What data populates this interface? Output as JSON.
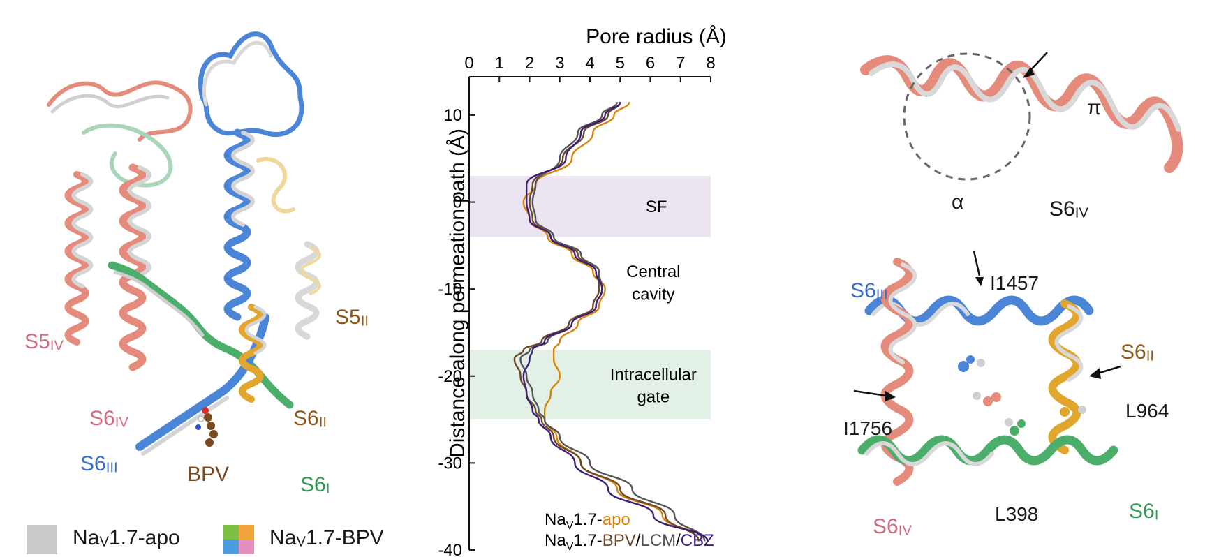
{
  "colors": {
    "apo_gray": "#c9c9c9",
    "domain_I_green": "#4cae6b",
    "domain_II_gold": "#e2a62c",
    "domain_III_blue": "#4a85d8",
    "domain_IV_salmon": "#e58b7c",
    "label_I": "#2e9a55",
    "label_II": "#8a5a18",
    "label_III": "#3a6fc6",
    "label_IV": "#d06c80",
    "bpv_brown": "#7a4a1f",
    "apo_line": "#d9830b",
    "bpv_line": "#6b4a2a",
    "lcm_line": "#555555",
    "cbz_line": "#3d1e78",
    "sf_band": "#ece4f0",
    "gate_band": "#e2f0e6"
  },
  "left_panel": {
    "labels": {
      "s5_iv": {
        "main": "S5",
        "sub": "IV"
      },
      "s6_iv": {
        "main": "S6",
        "sub": "IV"
      },
      "s6_iii": {
        "main": "S6",
        "sub": "III"
      },
      "s5_ii": {
        "main": "S5",
        "sub": "II"
      },
      "s6_ii": {
        "main": "S6",
        "sub": "II"
      },
      "s6_i": {
        "main": "S6",
        "sub": "I"
      },
      "bpv": "BPV"
    }
  },
  "legend": {
    "apo": {
      "prefix": "Na",
      "sub": "V",
      "suffix": "1.7-apo"
    },
    "bpv": {
      "prefix": "Na",
      "sub": "V",
      "suffix": "1.7-BPV"
    }
  },
  "chart_data": {
    "type": "line",
    "title": "Pore radius (Å)",
    "xlabel": "Pore radius (Å)",
    "ylabel": "Distance along permeation path (Å)",
    "xlim": [
      0,
      8
    ],
    "ylim": [
      -40,
      12
    ],
    "xticks": [
      "0",
      "1",
      "2",
      "3",
      "4",
      "5",
      "6",
      "7",
      "8"
    ],
    "yticks": [
      "10",
      "0",
      "-10",
      "-20",
      "-30",
      "-40"
    ],
    "bands": [
      {
        "label": "SF",
        "y_from": -4,
        "y_to": 3
      },
      {
        "label_line1": "Intracellular",
        "label_line2": "gate",
        "y_from": -25,
        "y_to": -17
      }
    ],
    "annotations": {
      "central_line1": "Central",
      "central_line2": "cavity"
    },
    "series": [
      {
        "name": "apo",
        "y": [
          11.5,
          10,
          8,
          5,
          2,
          0,
          -2,
          -4,
          -6,
          -8,
          -10,
          -12,
          -14,
          -16,
          -17,
          -18,
          -20,
          -22,
          -24,
          -25,
          -27,
          -30,
          -33,
          -36,
          -39
        ],
        "x": [
          5.3,
          4.8,
          4.1,
          3.4,
          2.2,
          1.8,
          2.0,
          2.6,
          3.4,
          4.1,
          4.5,
          4.3,
          3.6,
          3.0,
          2.8,
          2.8,
          3.0,
          2.7,
          2.5,
          2.5,
          2.9,
          3.7,
          4.9,
          6.4,
          7.8
        ]
      },
      {
        "name": "BPV",
        "y": [
          11.5,
          10,
          8,
          5,
          2,
          0,
          -2,
          -4,
          -6,
          -8,
          -10,
          -12,
          -14,
          -16,
          -17,
          -18,
          -20,
          -22,
          -24,
          -25,
          -27,
          -30,
          -33,
          -36,
          -39
        ],
        "x": [
          5.0,
          4.6,
          3.8,
          3.1,
          2.1,
          2.0,
          2.1,
          2.7,
          3.6,
          4.3,
          4.3,
          4.1,
          3.3,
          2.4,
          1.8,
          1.5,
          1.7,
          1.9,
          2.2,
          2.4,
          2.8,
          3.7,
          5.0,
          6.5,
          7.6
        ]
      },
      {
        "name": "LCM",
        "y": [
          11.5,
          10,
          8,
          5,
          2,
          0,
          -2,
          -4,
          -6,
          -8,
          -10,
          -12,
          -14,
          -16,
          -17,
          -18,
          -20,
          -22,
          -24,
          -25,
          -27,
          -30,
          -33,
          -36,
          -39
        ],
        "x": [
          4.9,
          4.4,
          3.6,
          3.0,
          2.2,
          2.1,
          2.2,
          2.8,
          3.7,
          4.3,
          4.4,
          4.2,
          3.4,
          2.6,
          2.0,
          1.7,
          1.9,
          2.1,
          2.3,
          2.5,
          3.0,
          4.0,
          5.4,
          6.8,
          7.8
        ]
      },
      {
        "name": "CBZ",
        "y": [
          11.5,
          10,
          8,
          5,
          2,
          0,
          -2,
          -4,
          -6,
          -8,
          -10,
          -12,
          -14,
          -16,
          -17,
          -18,
          -20,
          -22,
          -24,
          -25,
          -27,
          -30,
          -33,
          -36,
          -39
        ],
        "x": [
          5.0,
          4.5,
          3.7,
          3.2,
          1.9,
          1.9,
          2.0,
          2.7,
          3.5,
          4.2,
          4.4,
          4.2,
          3.4,
          2.5,
          2.1,
          2.0,
          1.8,
          1.9,
          2.1,
          2.3,
          2.7,
          3.5,
          4.6,
          6.1,
          7.9
        ]
      }
    ],
    "legend_line1": {
      "prefix": "Na",
      "sub": "V",
      "mid": "1.7-",
      "apo": "apo"
    },
    "legend_line2": {
      "prefix": "Na",
      "sub": "V",
      "mid": "1.7-",
      "bpv": "BPV",
      "sep1": "/",
      "lcm": "LCM",
      "sep2": "/",
      "cbz": "CBZ"
    }
  },
  "right_top": {
    "pi": "π",
    "alpha": "α",
    "s6_iv": {
      "main": "S6",
      "sub": "IV"
    }
  },
  "right_bottom": {
    "s6_iii": {
      "main": "S6",
      "sub": "III"
    },
    "i1457": "I1457",
    "s6_ii": {
      "main": "S6",
      "sub": "II"
    },
    "l964": "L964",
    "i1756": "I1756",
    "l398": "L398",
    "s6_iv": {
      "main": "S6",
      "sub": "IV"
    },
    "s6_i": {
      "main": "S6",
      "sub": "I"
    }
  }
}
